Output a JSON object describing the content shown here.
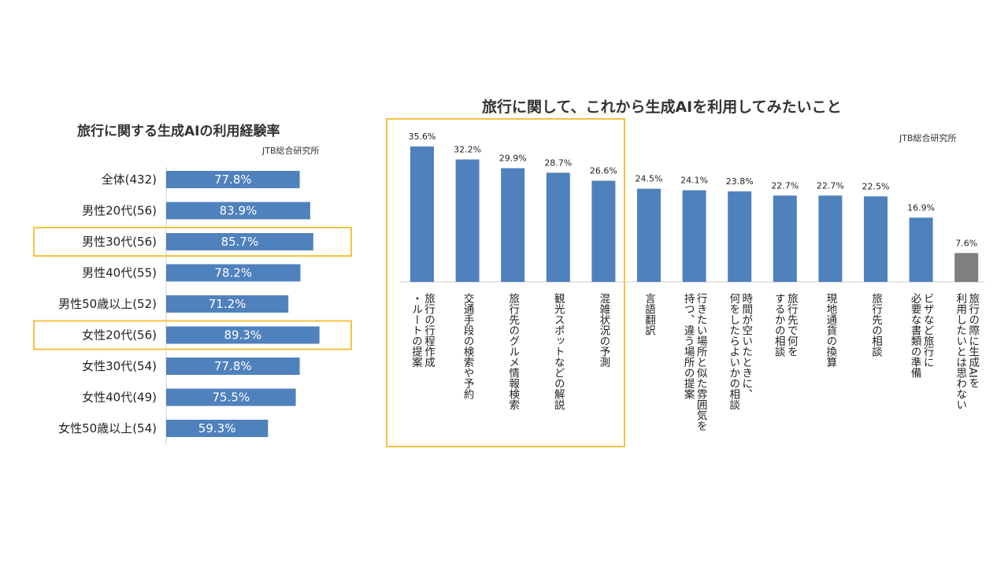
{
  "chart_data": [
    {
      "type": "bar",
      "orientation": "horizontal",
      "title": "旅行に関する生成AIの利用経験率",
      "source": "JTB総合研究所",
      "unit": "%",
      "xlim": [
        0,
        100
      ],
      "categories": [
        "全体(432)",
        "男性20代(56)",
        "男性30代(56)",
        "男性40代(55)",
        "男性50歳以上(52)",
        "女性20代(56)",
        "女性30代(54)",
        "女性40代(49)",
        "女性50歳以上(54)"
      ],
      "values": [
        77.8,
        83.9,
        85.7,
        78.2,
        71.2,
        89.3,
        77.8,
        75.5,
        59.3
      ],
      "labels": [
        "77.8%",
        "83.9%",
        "85.7%",
        "78.2%",
        "71.2%",
        "89.3%",
        "77.8%",
        "75.5%",
        "59.3%"
      ],
      "highlighted": [
        "男性30代(56)",
        "女性20代(56)"
      ],
      "bar_color": "#4f81bd",
      "highlight_color": "#f5c342"
    },
    {
      "type": "bar",
      "orientation": "vertical",
      "title": "旅行に関して、これから生成AIを利用してみたいこと",
      "source": "JTB総合研究所",
      "unit": "%",
      "ylim": [
        0,
        40
      ],
      "categories": [
        [
          "旅行の行程作成",
          "・ルートの提案"
        ],
        [
          "交通手段の検索や予約"
        ],
        [
          "旅行先のグルメ情報検索"
        ],
        [
          "観光スポットなどの解説"
        ],
        [
          "混雑状況の予測"
        ],
        [
          "言語翻訳"
        ],
        [
          "行きたい場所と似た雰囲気を",
          "持つ、違う場所の提案"
        ],
        [
          "時間が空いたときに、",
          "何をしたらよいかの相談"
        ],
        [
          "旅行先で何を",
          "するかの相談"
        ],
        [
          "現地通貨の換算"
        ],
        [
          "旅行先の相談"
        ],
        [
          "ビザなど旅行に",
          "必要な書類の準備"
        ],
        [
          "旅行の際に生成AIを",
          "利用したいとは思わない"
        ]
      ],
      "values": [
        35.6,
        32.2,
        29.9,
        28.7,
        26.6,
        24.5,
        24.1,
        23.8,
        22.7,
        22.7,
        22.5,
        16.9,
        7.6
      ],
      "labels": [
        "35.6%",
        "32.2%",
        "29.9%",
        "28.7%",
        "26.6%",
        "24.5%",
        "24.1%",
        "23.8%",
        "22.7%",
        "22.7%",
        "22.5%",
        "16.9%",
        "7.6%"
      ],
      "highlighted_count": 5,
      "bar_color": "#4f81bd",
      "gray_color": "#7f7f7f",
      "highlight_color": "#f5c342"
    }
  ]
}
